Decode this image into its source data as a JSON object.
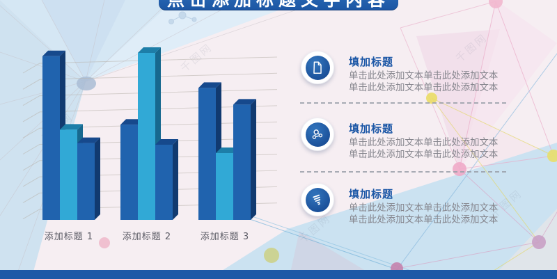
{
  "banner": {
    "title": "点击添加标题文字内容"
  },
  "watermark": {
    "text": "千图网"
  },
  "chart_data": {
    "type": "bar",
    "title": "",
    "xlabel": "",
    "ylabel": "",
    "categories": [
      "添加标题 1",
      "添加标题 2",
      "添加标题 3"
    ],
    "series": [
      {
        "values": [
          98,
          57,
          79
        ],
        "colors": {
          "front": "#2063AE",
          "top": "#16498C",
          "side": "#113A70"
        }
      },
      {
        "values": [
          54,
          100,
          40
        ],
        "colors": {
          "front": "#31A9D6",
          "top": "#1D7EA8",
          "side": "#17698F"
        }
      },
      {
        "values": [
          46,
          45,
          69
        ],
        "colors": {
          "front": "#2063AE",
          "top": "#16498C",
          "side": "#113A70"
        }
      }
    ],
    "ylim": [
      0,
      100
    ],
    "grid": true,
    "legend": false,
    "style": "3d-bars",
    "value_scale": "arbitrary (no axis tick labels visible)"
  },
  "items": [
    {
      "icon": "document-icon",
      "title": "填加标题",
      "body": "单击此处添加文本单击此处添加文本单击此处添加文本单击此处添加文本"
    },
    {
      "icon": "molecule-icon",
      "title": "填加标题",
      "body": "单击此处添加文本单击此处添加文本单击此处添加文本单击此处添加文本"
    },
    {
      "icon": "bulb-icon",
      "title": "填加标题",
      "body": "单击此处添加文本单击此处添加文本单击此处添加文本单击此处添加文本"
    }
  ],
  "colors": {
    "accent_blue": "#1D59A7",
    "banner_blue": "#2263B0",
    "bar_dark_blue": "#2063AE",
    "bar_cyan": "#31A9D6",
    "body_text_gray": "#85858D",
    "item_title_blue": "#1C57A6"
  }
}
